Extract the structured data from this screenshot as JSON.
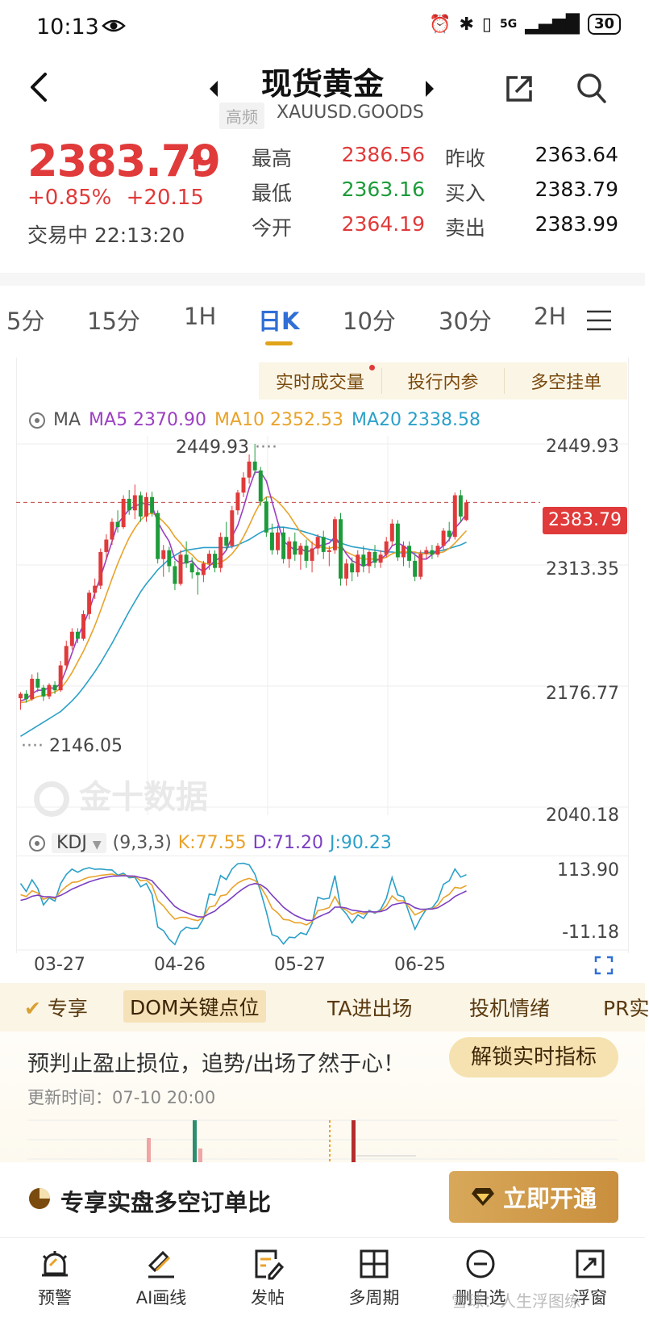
{
  "status_bar": {
    "time": "10:13",
    "network": "5G",
    "battery": "30"
  },
  "header": {
    "title": "现货黄金",
    "tag": "高频",
    "symbol": "XAUUSD.GOODS"
  },
  "quote": {
    "price": "2383.79",
    "change_pct": "+0.85%",
    "change_abs": "+20.15",
    "trading_status": "交易中 22:13:20",
    "high_label": "最高",
    "high_value": "2386.56",
    "low_label": "最低",
    "low_value": "2363.16",
    "open_label": "今开",
    "open_value": "2364.19",
    "prev_close_label": "昨收",
    "prev_close_value": "2363.64",
    "bid_label": "买入",
    "bid_value": "2383.79",
    "ask_label": "卖出",
    "ask_value": "2383.99"
  },
  "period_tabs": [
    "5分",
    "15分",
    "1H",
    "日K",
    "10分",
    "30分",
    "2H"
  ],
  "active_period": "日K",
  "feature_bar": [
    "实时成交量",
    "投行内参",
    "多空挂单"
  ],
  "ma": {
    "label": "MA",
    "ma5": "MA5 2370.90",
    "ma10": "MA10 2352.53",
    "ma20": "MA20 2338.58",
    "colors": {
      "ma5": "#9b3fc2",
      "ma10": "#e9a32a",
      "ma20": "#2ba0c9",
      "up": "#e03a3a",
      "down": "#1d9b3a"
    }
  },
  "price_axis": {
    "top": "2449.93",
    "upper": "2313.35",
    "middle": "2176.77",
    "bottom": "2040.18",
    "current_tag": "2383.79",
    "max_marker": "2449.93",
    "min_marker": "2146.05"
  },
  "watermark": "金十数据",
  "kdj": {
    "label": "KDJ",
    "params": "(9,3,3)",
    "k": "K:77.55",
    "d": "D:71.20",
    "j": "J:90.23",
    "axis_top": "113.90",
    "axis_bottom": "-11.18"
  },
  "dates": [
    "03-27",
    "04-26",
    "05-27",
    "06-25"
  ],
  "promo": {
    "tabs": [
      "专享",
      "DOM关键点位",
      "TA进出场",
      "投机情绪",
      "PR实"
    ],
    "headline": "预判止盈止损位，追势/出场了然于心！",
    "unlock": "解锁实时指标",
    "update_time": "更新时间：07-10 20:00"
  },
  "banner": {
    "text": "专享实盘多空订单比",
    "button": "立即开通"
  },
  "bottom_nav": [
    "预警",
    "AI画线",
    "发帖",
    "多周期",
    "删自选",
    "浮窗"
  ],
  "footer_watermark": "雪球：人生浮图练",
  "chart_data": {
    "type": "candlestick",
    "xlabels": [
      "03-27",
      "04-26",
      "05-27",
      "06-25"
    ],
    "ylim": [
      2040.18,
      2449.93
    ],
    "candles": [
      [
        2163,
        2170,
        2150,
        2168
      ],
      [
        2168,
        2172,
        2158,
        2162
      ],
      [
        2162,
        2190,
        2160,
        2185
      ],
      [
        2185,
        2192,
        2170,
        2175
      ],
      [
        2175,
        2178,
        2160,
        2165
      ],
      [
        2165,
        2180,
        2162,
        2178
      ],
      [
        2178,
        2182,
        2168,
        2172
      ],
      [
        2172,
        2205,
        2170,
        2200
      ],
      [
        2200,
        2228,
        2195,
        2222
      ],
      [
        2222,
        2242,
        2218,
        2238
      ],
      [
        2238,
        2242,
        2225,
        2230
      ],
      [
        2230,
        2262,
        2228,
        2258
      ],
      [
        2258,
        2285,
        2252,
        2282
      ],
      [
        2282,
        2298,
        2275,
        2290
      ],
      [
        2290,
        2332,
        2286,
        2328
      ],
      [
        2328,
        2348,
        2320,
        2342
      ],
      [
        2342,
        2366,
        2336,
        2362
      ],
      [
        2362,
        2375,
        2350,
        2356
      ],
      [
        2356,
        2392,
        2354,
        2388
      ],
      [
        2388,
        2398,
        2370,
        2375
      ],
      [
        2375,
        2404,
        2365,
        2392
      ],
      [
        2392,
        2396,
        2362,
        2368
      ],
      [
        2368,
        2395,
        2362,
        2390
      ],
      [
        2390,
        2396,
        2368,
        2372
      ],
      [
        2372,
        2375,
        2315,
        2320
      ],
      [
        2320,
        2336,
        2300,
        2330
      ],
      [
        2330,
        2334,
        2305,
        2312
      ],
      [
        2312,
        2318,
        2285,
        2292
      ],
      [
        2292,
        2330,
        2290,
        2325
      ],
      [
        2325,
        2340,
        2310,
        2315
      ],
      [
        2315,
        2322,
        2298,
        2305
      ],
      [
        2305,
        2310,
        2280,
        2302
      ],
      [
        2302,
        2318,
        2294,
        2315
      ],
      [
        2315,
        2330,
        2308,
        2326
      ],
      [
        2326,
        2330,
        2305,
        2310
      ],
      [
        2310,
        2350,
        2305,
        2345
      ],
      [
        2345,
        2362,
        2330,
        2335
      ],
      [
        2335,
        2380,
        2332,
        2375
      ],
      [
        2375,
        2398,
        2370,
        2395
      ],
      [
        2395,
        2418,
        2390,
        2412
      ],
      [
        2412,
        2438,
        2405,
        2430
      ],
      [
        2430,
        2450,
        2415,
        2420
      ],
      [
        2420,
        2424,
        2380,
        2385
      ],
      [
        2385,
        2390,
        2345,
        2350
      ],
      [
        2350,
        2360,
        2325,
        2330
      ],
      [
        2330,
        2358,
        2325,
        2350
      ],
      [
        2350,
        2356,
        2315,
        2320
      ],
      [
        2320,
        2345,
        2310,
        2340
      ],
      [
        2340,
        2350,
        2318,
        2325
      ],
      [
        2325,
        2338,
        2308,
        2335
      ],
      [
        2335,
        2342,
        2310,
        2318
      ],
      [
        2318,
        2340,
        2305,
        2332
      ],
      [
        2332,
        2348,
        2325,
        2345
      ],
      [
        2345,
        2352,
        2320,
        2328
      ],
      [
        2328,
        2335,
        2312,
        2330
      ],
      [
        2330,
        2368,
        2326,
        2365
      ],
      [
        2365,
        2372,
        2290,
        2298
      ],
      [
        2298,
        2320,
        2290,
        2315
      ],
      [
        2315,
        2322,
        2295,
        2305
      ],
      [
        2305,
        2330,
        2300,
        2325
      ],
      [
        2325,
        2335,
        2305,
        2312
      ],
      [
        2312,
        2330,
        2304,
        2328
      ],
      [
        2328,
        2336,
        2310,
        2316
      ],
      [
        2316,
        2330,
        2310,
        2325
      ],
      [
        2325,
        2345,
        2322,
        2340
      ],
      [
        2340,
        2365,
        2335,
        2360
      ],
      [
        2360,
        2364,
        2318,
        2322
      ],
      [
        2322,
        2340,
        2312,
        2335
      ],
      [
        2335,
        2340,
        2310,
        2318
      ],
      [
        2318,
        2325,
        2295,
        2300
      ],
      [
        2300,
        2330,
        2297,
        2326
      ],
      [
        2326,
        2334,
        2320,
        2330
      ],
      [
        2330,
        2336,
        2320,
        2325
      ],
      [
        2325,
        2338,
        2322,
        2335
      ],
      [
        2335,
        2355,
        2330,
        2352
      ],
      [
        2352,
        2362,
        2340,
        2345
      ],
      [
        2345,
        2395,
        2342,
        2392
      ],
      [
        2392,
        2398,
        2362,
        2368
      ],
      [
        2364,
        2387,
        2363,
        2384
      ]
    ],
    "ma5": [
      2160,
      2162,
      2168,
      2172,
      2172,
      2175,
      2174,
      2180,
      2196,
      2214,
      2232,
      2246,
      2262,
      2282,
      2300,
      2320,
      2340,
      2360,
      2368,
      2376,
      2380,
      2382,
      2383,
      2380,
      2362,
      2350,
      2340,
      2320,
      2315,
      2316,
      2318,
      2310,
      2306,
      2312,
      2318,
      2322,
      2330,
      2345,
      2358,
      2378,
      2400,
      2418,
      2418,
      2408,
      2385,
      2362,
      2340,
      2335,
      2330,
      2332,
      2328,
      2330,
      2335,
      2336,
      2338,
      2345,
      2336,
      2326,
      2318,
      2315,
      2312,
      2315,
      2318,
      2320,
      2325,
      2335,
      2338,
      2335,
      2330,
      2325,
      2320,
      2320,
      2325,
      2330,
      2335,
      2342,
      2355,
      2362,
      2371
    ],
    "ma10": [
      2158,
      2159,
      2162,
      2165,
      2166,
      2168,
      2170,
      2174,
      2182,
      2192,
      2204,
      2216,
      2230,
      2245,
      2262,
      2280,
      2298,
      2315,
      2330,
      2344,
      2355,
      2364,
      2370,
      2372,
      2368,
      2362,
      2355,
      2345,
      2338,
      2330,
      2325,
      2318,
      2316,
      2314,
      2314,
      2316,
      2320,
      2326,
      2334,
      2345,
      2358,
      2372,
      2384,
      2390,
      2390,
      2385,
      2378,
      2370,
      2360,
      2350,
      2344,
      2338,
      2334,
      2333,
      2332,
      2334,
      2332,
      2328,
      2325,
      2322,
      2320,
      2320,
      2320,
      2320,
      2322,
      2326,
      2328,
      2328,
      2328,
      2328,
      2326,
      2326,
      2326,
      2327,
      2328,
      2332,
      2338,
      2345,
      2352
    ],
    "ma20": [
      2120,
      2124,
      2128,
      2132,
      2136,
      2140,
      2144,
      2148,
      2154,
      2160,
      2167,
      2175,
      2184,
      2193,
      2203,
      2214,
      2225,
      2237,
      2249,
      2261,
      2272,
      2283,
      2292,
      2300,
      2308,
      2314,
      2320,
      2324,
      2328,
      2330,
      2331,
      2332,
      2333,
      2333,
      2333,
      2333,
      2333,
      2334,
      2336,
      2339,
      2342,
      2346,
      2350,
      2353,
      2355,
      2356,
      2356,
      2355,
      2354,
      2352,
      2350,
      2348,
      2346,
      2344,
      2342,
      2340,
      2338,
      2336,
      2334,
      2333,
      2332,
      2331,
      2330,
      2329,
      2328,
      2328,
      2327,
      2327,
      2327,
      2327,
      2327,
      2327,
      2328,
      2329,
      2330,
      2332,
      2334,
      2336,
      2339
    ]
  }
}
